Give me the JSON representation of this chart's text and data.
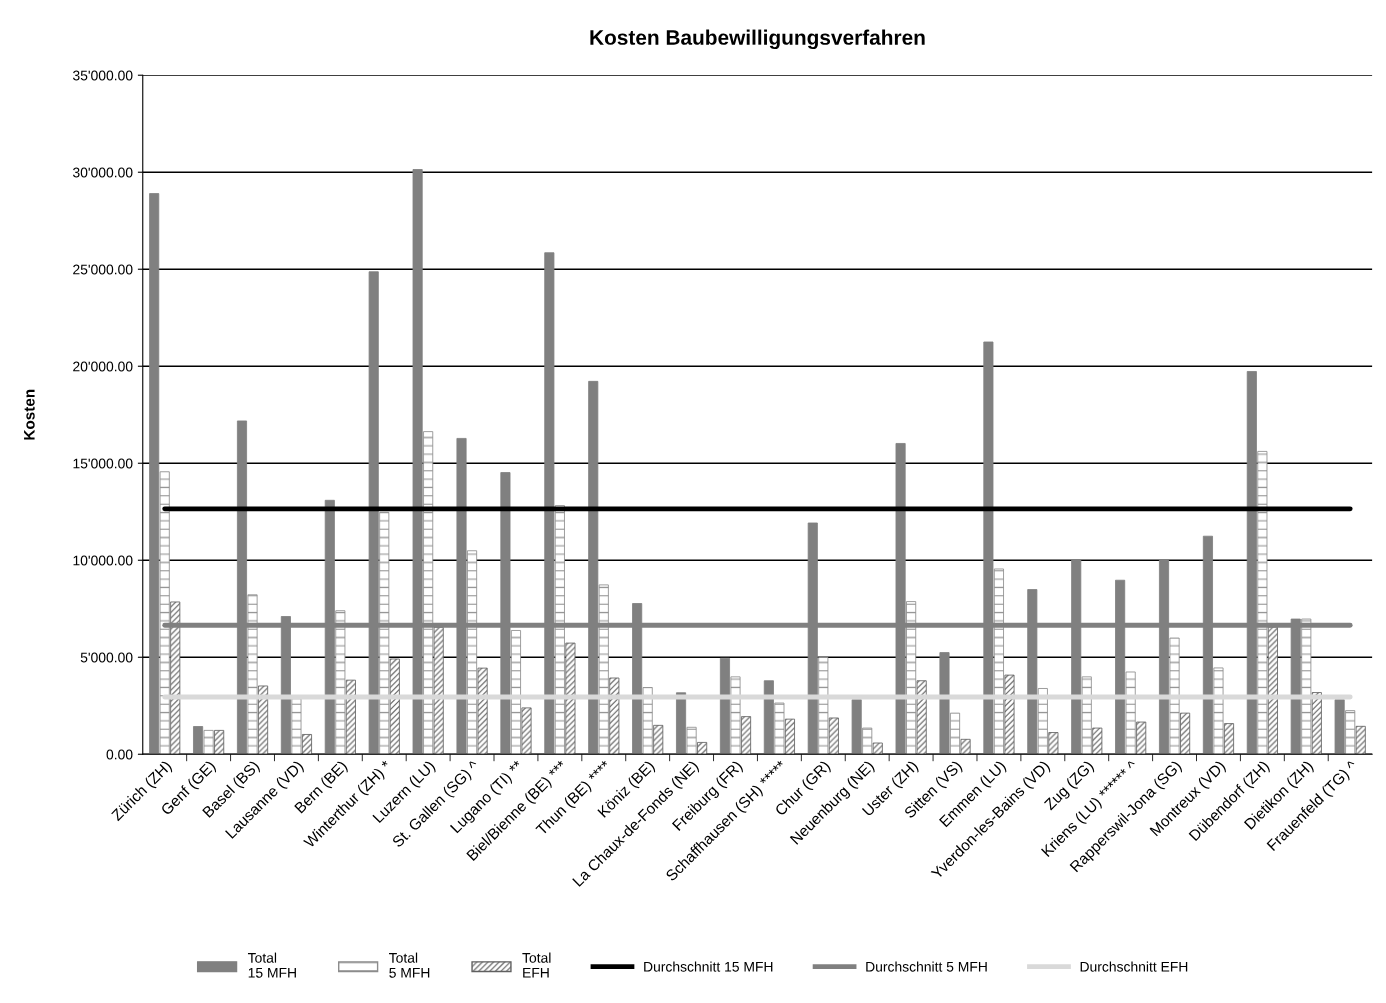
{
  "chart_data": {
    "type": "bar",
    "title": "Kosten Baubewilligungsverfahren",
    "ylabel": "Kosten",
    "categories": [
      "Zürich (ZH)",
      "Genf (GE)",
      "Basel (BS)",
      "Lausanne (VD)",
      "Bern (BE)",
      "Winterthur (ZH) *",
      "Luzern (LU)",
      "St. Gallen (SG) ^",
      "Lugano (TI) **",
      "Biel/Bienne (BE) ***",
      "Thun (BE) ****",
      "Köniz (BE)",
      "La Chaux-de-Fonds (NE)",
      "Freiburg (FR)",
      "Schaffhausen (SH) *****",
      "Chur (GR)",
      "Neuenburg (NE)",
      "Uster (ZH)",
      "Sitten (VS)",
      "Emmen (LU)",
      "Yverdon-les-Bains (VD)",
      "Zug (ZG)",
      "Kriens (LU) ****** ^",
      "Rapperswil-Jona (SG)",
      "Montreux (VD)",
      "Dübendorf (ZH)",
      "Dietikon (ZH)",
      "Frauenfeld (TG) ^"
    ],
    "series": [
      {
        "name": "Total\n15 MFH",
        "color": "#808080",
        "values": [
          28900,
          1430,
          17180,
          7100,
          13090,
          24870,
          30140,
          16280,
          14520,
          25850,
          19220,
          7770,
          3170,
          4950,
          3790,
          11920,
          2810,
          16020,
          5240,
          21250,
          8490,
          10010,
          8970,
          10010,
          11240,
          19730,
          6970,
          2810
        ]
      },
      {
        "name": "Total\n5 MFH",
        "color": "#8c8c8c",
        "values": [
          14560,
          1230,
          8220,
          2860,
          7400,
          12470,
          16630,
          10490,
          6380,
          12820,
          8730,
          3440,
          1390,
          3990,
          2640,
          4990,
          1350,
          7870,
          2120,
          9550,
          3390,
          3990,
          4240,
          5990,
          4450,
          15610,
          6970,
          2250
        ]
      },
      {
        "name": "Total\nEFH",
        "color": "#606060",
        "values": [
          7850,
          1230,
          3520,
          1020,
          3820,
          4910,
          6540,
          4440,
          2390,
          5730,
          3930,
          1490,
          610,
          1940,
          1810,
          1870,
          580,
          3790,
          770,
          4080,
          1120,
          1350,
          1660,
          2120,
          1580,
          6550,
          3180,
          1440
        ]
      },
      {
        "name": "Durchschnitt 15 MFH",
        "type": "line",
        "color": "#000000",
        "values": [
          12650,
          12650,
          12650,
          12650,
          12650,
          12650,
          12650,
          12650,
          12650,
          12650,
          12650,
          12650,
          12650,
          12650,
          12650,
          12650,
          12650,
          12650,
          12650,
          12650,
          12650,
          12650,
          12650,
          12650,
          12650,
          12650,
          12650,
          12650
        ]
      },
      {
        "name": "Durchschnitt 5 MFH",
        "type": "line",
        "color": "#808080",
        "values": [
          6650,
          6650,
          6650,
          6650,
          6650,
          6650,
          6650,
          6650,
          6650,
          6650,
          6650,
          6650,
          6650,
          6650,
          6650,
          6650,
          6650,
          6650,
          6650,
          6650,
          6650,
          6650,
          6650,
          6650,
          6650,
          6650,
          6650,
          6650
        ]
      },
      {
        "name": "Durchschnitt EFH",
        "type": "line",
        "color": "#d9d9d9",
        "values": [
          2950,
          2950,
          2950,
          2950,
          2950,
          2950,
          2950,
          2950,
          2950,
          2950,
          2950,
          2950,
          2950,
          2950,
          2950,
          2950,
          2950,
          2950,
          2950,
          2950,
          2950,
          2950,
          2950,
          2950,
          2950,
          2950,
          2950,
          2950
        ]
      }
    ],
    "ylim": [
      0,
      35000
    ],
    "yticks": [
      {
        "value": 0,
        "label": "0.00"
      },
      {
        "value": 5000,
        "label": "5'000.00"
      },
      {
        "value": 10000,
        "label": "10'000.00"
      },
      {
        "value": 15000,
        "label": "15'000.00"
      },
      {
        "value": 20000,
        "label": "20'000.00"
      },
      {
        "value": 25000,
        "label": "25'000.00"
      },
      {
        "value": 30000,
        "label": "30'000.00"
      },
      {
        "value": 35000,
        "label": "35'000.00"
      }
    ],
    "grid": "y",
    "legend": "bottom",
    "marker": "none",
    "line_style": "solid"
  }
}
